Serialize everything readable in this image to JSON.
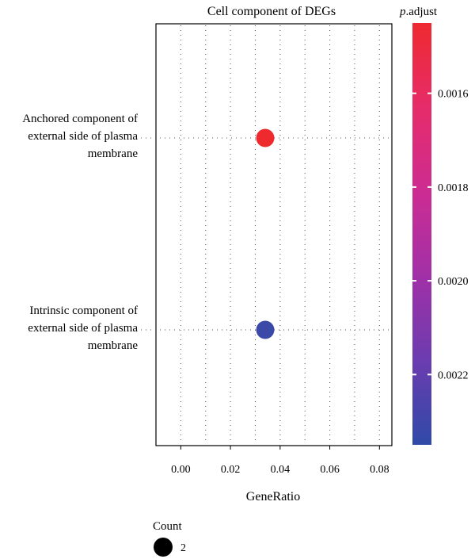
{
  "chart_data": {
    "type": "scatter",
    "title": "Cell component of DEGs",
    "xlabel": "GeneRatio",
    "ylabel": "",
    "xlim": [
      -0.01,
      0.085
    ],
    "x_ticks": [
      0.0,
      0.02,
      0.04,
      0.06,
      0.08
    ],
    "x_tick_labels": [
      "0.00",
      "0.02",
      "0.04",
      "0.06",
      "0.08"
    ],
    "grid": true,
    "categories": [
      {
        "name": "Anchored component of external side of plasma membrane",
        "label_lines": [
          "Anchored component of",
          "external side of plasma",
          "membrane"
        ]
      },
      {
        "name": "Intrinsic component of external side of plasma membrane",
        "label_lines": [
          "Intrinsic component of",
          "external side of plasma",
          "membrane"
        ]
      }
    ],
    "points": [
      {
        "category": "Anchored component of external side of plasma membrane",
        "x": 0.034,
        "count": 2,
        "p_adjust": 0.00145,
        "color": "#ee2a2f"
      },
      {
        "category": "Intrinsic component of external side of plasma membrane",
        "x": 0.034,
        "count": 2,
        "p_adjust": 0.00235,
        "color": "#3a4aa6"
      }
    ],
    "colorbar": {
      "title_italic": "p",
      "title_rest": ".adjust",
      "range": [
        0.00145,
        0.00235
      ],
      "ticks": [
        0.0016,
        0.0018,
        0.002,
        0.0022
      ],
      "tick_labels": [
        "0.0016",
        "0.0018",
        "0.0020",
        "0.0022"
      ],
      "colors": [
        "#ee2a2f",
        "#e62c6a",
        "#cc2c92",
        "#a130a7",
        "#6b3caf",
        "#2f4aa8"
      ]
    },
    "size_legend": {
      "title": "Count",
      "items": [
        {
          "label": "2",
          "value": 2
        }
      ]
    },
    "legend_position": "right"
  }
}
